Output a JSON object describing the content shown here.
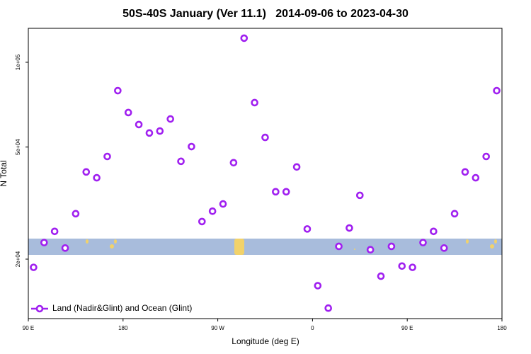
{
  "chart_data": {
    "type": "scatter",
    "title": "50S-40S January (Ver 11.1)   2014-09-06 to 2023-04-30",
    "x_label": "Longitude (deg E)",
    "y_label": "N Total",
    "log_y": true,
    "legend_position": "bottom-left",
    "xlim": [
      90,
      540
    ],
    "ylim": [
      12300,
      132000
    ],
    "xticks": [
      {
        "value": 90,
        "label": "90 E"
      },
      {
        "value": 180,
        "label": "180"
      },
      {
        "value": 270,
        "label": "90 W"
      },
      {
        "value": 360,
        "label": "0"
      },
      {
        "value": 450,
        "label": "90 E"
      },
      {
        "value": 540,
        "label": "180"
      }
    ],
    "yticks": [
      {
        "value": 20000,
        "label": "2e+04"
      },
      {
        "value": 50000,
        "label": "5e+04"
      },
      {
        "value": 100000,
        "label": "1e+05"
      }
    ],
    "series": [
      {
        "name": "Land (Nadir&Glint) and Ocean (Glint)",
        "color": "#a020f0",
        "x": [
          95,
          105,
          115,
          125,
          135,
          145,
          155,
          165,
          175,
          185,
          195,
          205,
          215,
          225,
          235,
          245,
          255,
          265,
          275,
          285,
          295,
          305,
          315,
          325,
          335,
          345,
          355,
          365,
          375,
          385,
          395,
          405,
          415,
          425,
          435,
          445,
          455,
          465,
          475,
          485,
          495,
          505,
          515,
          525,
          535
        ],
        "values": [
          18700,
          22900,
          25100,
          21900,
          29000,
          40800,
          38900,
          46300,
          79300,
          66300,
          60100,
          56100,
          57000,
          62900,
          44500,
          50200,
          27200,
          29600,
          31400,
          44000,
          121800,
          71900,
          54100,
          34700,
          34700,
          42500,
          25600,
          16100,
          13400,
          22200,
          25800,
          33700,
          21600,
          17400,
          22200,
          18900,
          18700,
          22900,
          25100,
          21900,
          29000,
          40800,
          38900,
          46300,
          79300
        ]
      }
    ]
  }
}
